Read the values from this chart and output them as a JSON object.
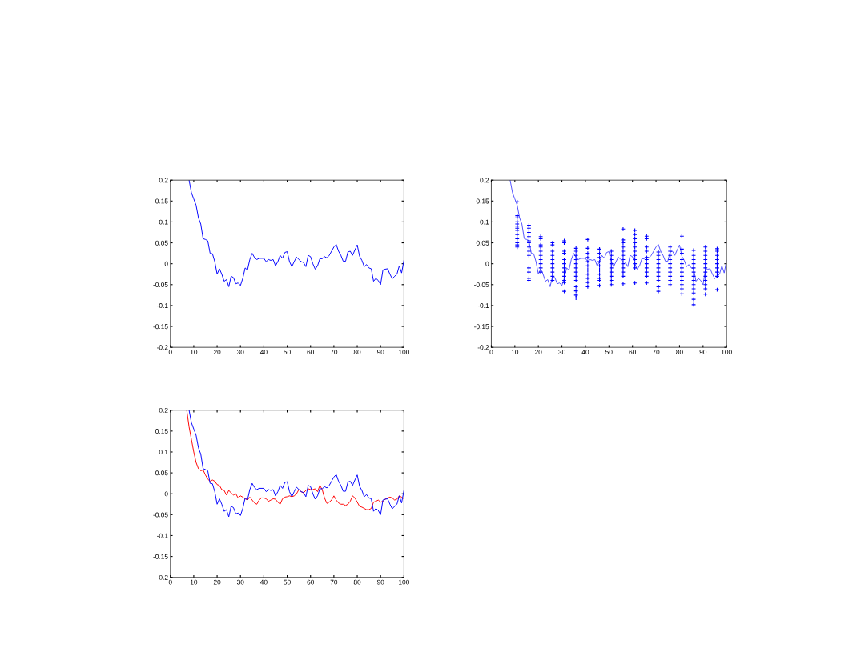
{
  "chart_data": [
    {
      "type": "line",
      "xlim": [
        0,
        100
      ],
      "ylim": [
        -0.2,
        0.2
      ],
      "xticks": [
        0,
        10,
        20,
        30,
        40,
        50,
        60,
        70,
        80,
        90,
        100
      ],
      "yticks": [
        -0.2,
        -0.15,
        -0.1,
        -0.05,
        0,
        0.05,
        0.1,
        0.15,
        0.2
      ],
      "grid": false,
      "series": [
        {
          "color": "#0000ff",
          "x": [
            8,
            9,
            10,
            11,
            12,
            13,
            14,
            15,
            16,
            17,
            18,
            19,
            20,
            21,
            22,
            23,
            24,
            25,
            26,
            27,
            28,
            29,
            30,
            31,
            32,
            33,
            34,
            35,
            36,
            37,
            38,
            40,
            41,
            42,
            43,
            44,
            45,
            46,
            47,
            48,
            49,
            50,
            51,
            52,
            53,
            54,
            55,
            56,
            57,
            58,
            59,
            60,
            61,
            62,
            63,
            64,
            65,
            66,
            67,
            68,
            69,
            70,
            71,
            72,
            73,
            74,
            75,
            76,
            77,
            78,
            79,
            80,
            81,
            82,
            83,
            84,
            85,
            86,
            87,
            88,
            89,
            90,
            91,
            92,
            93,
            94,
            95,
            96,
            97,
            98,
            99,
            100
          ],
          "values": [
            0.2,
            0.17,
            0.155,
            0.14,
            0.11,
            0.095,
            0.06,
            0.058,
            0.055,
            0.025,
            0.024,
            0.005,
            -0.025,
            -0.012,
            -0.025,
            -0.042,
            -0.038,
            -0.055,
            -0.03,
            -0.033,
            -0.048,
            -0.046,
            -0.052,
            -0.035,
            -0.01,
            -0.015,
            0.01,
            0.025,
            0.015,
            0.01,
            0.013,
            0.013,
            0.005,
            0.01,
            0.008,
            0.01,
            -0.005,
            0.005,
            0.02,
            0.013,
            0.027,
            0.029,
            0.005,
            -0.007,
            0.005,
            0.016,
            0.01,
            0.005,
            0.003,
            -0.007,
            0.02,
            0.017,
            0,
            -0.013,
            -0.005,
            0.012,
            0.012,
            0.017,
            0.014,
            0.02,
            0.03,
            0.04,
            0.046,
            0.03,
            0.02,
            0.006,
            0.006,
            0.028,
            0.03,
            0.02,
            0.033,
            0.045,
            0.018,
            0.008,
            -0.007,
            -0.002,
            -0.01,
            -0.012,
            -0.042,
            -0.035,
            -0.04,
            -0.05,
            -0.015,
            -0.013,
            -0.012,
            -0.025,
            -0.036,
            -0.03,
            -0.025,
            -0.005,
            -0.022,
            0.008
          ]
        }
      ]
    },
    {
      "type": "line",
      "xlim": [
        0,
        100
      ],
      "ylim": [
        -0.2,
        0.2
      ],
      "xticks": [
        0,
        10,
        20,
        30,
        40,
        50,
        60,
        70,
        80,
        90,
        100
      ],
      "yticks": [
        -0.2,
        -0.15,
        -0.1,
        -0.05,
        0,
        0.05,
        0.1,
        0.15,
        0.2
      ],
      "grid": false,
      "series": [
        {
          "type": "scatter",
          "marker": "cross",
          "color": "#0000ff",
          "x": [
            11,
            11,
            11,
            11,
            11,
            11,
            11,
            11,
            11,
            11,
            11,
            11,
            11,
            16,
            16,
            16,
            16,
            16,
            16,
            16,
            16,
            16,
            16,
            16,
            16,
            16,
            21,
            21,
            21,
            21,
            21,
            21,
            21,
            21,
            21,
            21,
            26,
            26,
            26,
            26,
            26,
            26,
            26,
            26,
            26,
            26,
            31,
            31,
            31,
            31,
            31,
            31,
            31,
            31,
            31,
            31,
            31,
            31,
            36,
            36,
            36,
            36,
            36,
            36,
            36,
            36,
            36,
            36,
            36,
            36,
            36,
            41,
            41,
            41,
            41,
            41,
            41,
            41,
            41,
            41,
            41,
            41,
            46,
            46,
            46,
            46,
            46,
            46,
            46,
            46,
            46,
            46,
            51,
            51,
            51,
            51,
            51,
            51,
            51,
            51,
            51,
            56,
            56,
            56,
            56,
            56,
            56,
            56,
            56,
            56,
            56,
            56,
            56,
            61,
            61,
            61,
            61,
            61,
            61,
            61,
            61,
            61,
            61,
            61,
            66,
            66,
            66,
            66,
            66,
            66,
            66,
            66,
            66,
            66,
            66,
            71,
            71,
            71,
            71,
            71,
            71,
            71,
            71,
            71,
            71,
            76,
            76,
            76,
            76,
            76,
            76,
            76,
            76,
            76,
            76,
            81,
            81,
            81,
            81,
            81,
            81,
            81,
            81,
            81,
            81,
            81,
            81,
            86,
            86,
            86,
            86,
            86,
            86,
            86,
            86,
            86,
            86,
            86,
            86,
            86,
            91,
            91,
            91,
            91,
            91,
            91,
            91,
            91,
            91,
            91,
            91,
            91,
            96,
            96,
            96,
            96,
            96,
            96,
            96,
            96,
            96
          ],
          "values": [
            0.148,
            0.115,
            0.11,
            0.1,
            0.095,
            0.09,
            0.085,
            0.08,
            0.07,
            0.06,
            0.05,
            0.045,
            0.04,
            0.092,
            0.085,
            0.075,
            0.065,
            0.055,
            0.05,
            0.04,
            0.03,
            0.02,
            -0.01,
            -0.02,
            -0.035,
            -0.04,
            0.065,
            0.06,
            0.045,
            0.04,
            0.03,
            0.02,
            0.01,
            0,
            -0.01,
            -0.02,
            0.05,
            0.045,
            0.03,
            0.02,
            0.01,
            0,
            -0.01,
            -0.02,
            -0.03,
            -0.04,
            0.055,
            0.05,
            0.03,
            0.025,
            0.01,
            0,
            -0.01,
            -0.02,
            -0.03,
            -0.04,
            -0.045,
            -0.066,
            0.037,
            0.03,
            0.02,
            0.01,
            0,
            -0.01,
            -0.02,
            -0.03,
            -0.04,
            -0.055,
            -0.065,
            -0.075,
            -0.082,
            0.058,
            0.037,
            0.025,
            0.015,
            0.005,
            -0.005,
            -0.015,
            -0.025,
            -0.035,
            -0.045,
            -0.055,
            0.035,
            0.025,
            0.015,
            0.005,
            -0.005,
            -0.015,
            -0.025,
            -0.035,
            -0.04,
            -0.052,
            0.03,
            0.02,
            0.01,
            0,
            -0.01,
            -0.02,
            -0.03,
            -0.04,
            -0.05,
            0.083,
            0.057,
            0.05,
            0.04,
            0.03,
            0.02,
            0.01,
            0,
            -0.01,
            -0.02,
            -0.03,
            -0.048,
            0.08,
            0.07,
            0.06,
            0.05,
            0.04,
            0.03,
            0.02,
            0.01,
            0,
            -0.01,
            -0.046,
            0.066,
            0.06,
            0.04,
            0.03,
            0.015,
            0.01,
            0,
            -0.01,
            -0.02,
            -0.03,
            -0.046,
            0.028,
            0.02,
            0.01,
            0,
            -0.01,
            -0.02,
            -0.03,
            -0.04,
            -0.055,
            -0.066,
            0.04,
            0.03,
            0.02,
            0.01,
            0,
            -0.01,
            -0.02,
            -0.03,
            -0.04,
            -0.05,
            0.066,
            0.035,
            0.025,
            0.01,
            0,
            -0.01,
            -0.02,
            -0.03,
            -0.04,
            -0.05,
            -0.06,
            -0.072,
            0.032,
            0.02,
            0.01,
            0,
            -0.01,
            -0.02,
            -0.03,
            -0.04,
            -0.05,
            -0.06,
            -0.07,
            -0.085,
            -0.098,
            0.04,
            0.03,
            0.02,
            0.01,
            0,
            -0.01,
            -0.02,
            -0.03,
            -0.04,
            -0.05,
            -0.06,
            -0.073,
            0.036,
            0.03,
            0.02,
            0.01,
            0,
            -0.01,
            -0.02,
            -0.03,
            -0.062
          ]
        },
        {
          "type": "line",
          "color": "#5050ff",
          "x": [
            8,
            9,
            10,
            11,
            12,
            13,
            14,
            15,
            16,
            17,
            18,
            19,
            20,
            21,
            22,
            23,
            24,
            25,
            26,
            27,
            28,
            29,
            30,
            31,
            32,
            33,
            34,
            35,
            36,
            37,
            38,
            40,
            41,
            42,
            43,
            44,
            45,
            46,
            47,
            48,
            49,
            50,
            51,
            52,
            53,
            54,
            55,
            56,
            57,
            58,
            59,
            60,
            61,
            62,
            63,
            64,
            65,
            66,
            67,
            68,
            69,
            70,
            71,
            72,
            73,
            74,
            75,
            76,
            77,
            78,
            79,
            80,
            81,
            82,
            83,
            84,
            85,
            86,
            87,
            88,
            89,
            90,
            91,
            92,
            93,
            94,
            95,
            96,
            97,
            98,
            99,
            100
          ],
          "values": [
            0.2,
            0.17,
            0.155,
            0.14,
            0.11,
            0.095,
            0.06,
            0.058,
            0.055,
            0.025,
            0.024,
            0.005,
            -0.025,
            -0.012,
            -0.025,
            -0.042,
            -0.038,
            -0.055,
            -0.03,
            -0.033,
            -0.048,
            -0.046,
            -0.052,
            -0.035,
            -0.01,
            -0.015,
            0.01,
            0.025,
            0.015,
            0.01,
            0.013,
            0.013,
            0.005,
            0.01,
            0.008,
            0.01,
            -0.005,
            0.005,
            0.02,
            0.013,
            0.027,
            0.029,
            0.005,
            -0.007,
            0.005,
            0.016,
            0.01,
            0.005,
            0.003,
            -0.007,
            0.02,
            0.017,
            0,
            -0.013,
            -0.005,
            0.012,
            0.012,
            0.017,
            0.014,
            0.02,
            0.03,
            0.04,
            0.046,
            0.03,
            0.02,
            0.006,
            0.006,
            0.028,
            0.03,
            0.02,
            0.033,
            0.045,
            0.018,
            0.008,
            -0.007,
            -0.002,
            -0.01,
            -0.012,
            -0.042,
            -0.035,
            -0.04,
            -0.05,
            -0.015,
            -0.013,
            -0.012,
            -0.025,
            -0.036,
            -0.03,
            -0.025,
            -0.005,
            -0.022,
            0.008
          ]
        }
      ]
    },
    {
      "type": "line",
      "xlim": [
        0,
        100
      ],
      "ylim": [
        -0.2,
        0.2
      ],
      "xticks": [
        0,
        10,
        20,
        30,
        40,
        50,
        60,
        70,
        80,
        90,
        100
      ],
      "yticks": [
        -0.2,
        -0.15,
        -0.1,
        -0.05,
        0,
        0.05,
        0.1,
        0.15,
        0.2
      ],
      "grid": false,
      "series": [
        {
          "color": "#ff0000",
          "x": [
            7,
            8,
            9,
            10,
            11,
            12,
            13,
            14,
            15,
            16,
            17,
            18,
            19,
            20,
            21,
            22,
            23,
            24,
            25,
            26,
            27,
            28,
            29,
            30,
            31,
            32,
            33,
            34,
            35,
            36,
            37,
            38,
            39,
            40,
            41,
            42,
            43,
            44,
            45,
            46,
            47,
            48,
            49,
            50,
            51,
            52,
            53,
            54,
            55,
            56,
            57,
            58,
            59,
            60,
            61,
            62,
            63,
            64,
            65,
            66,
            67,
            68,
            69,
            70,
            71,
            72,
            73,
            74,
            75,
            76,
            77,
            78,
            79,
            80,
            81,
            82,
            83,
            84,
            85,
            86,
            87,
            88,
            89,
            90,
            91,
            92,
            93,
            94,
            95,
            96,
            97,
            98,
            99,
            100
          ],
          "values": [
            0.2,
            0.16,
            0.13,
            0.1,
            0.075,
            0.06,
            0.055,
            0.057,
            0.045,
            0.035,
            0.03,
            0.033,
            0.03,
            0.022,
            0.02,
            0.01,
            0.008,
            -0.003,
            0.008,
            0.002,
            -0.003,
            0,
            -0.01,
            -0.005,
            -0.008,
            -0.012,
            -0.015,
            -0.008,
            -0.015,
            -0.022,
            -0.025,
            -0.015,
            -0.01,
            -0.01,
            -0.012,
            -0.018,
            -0.015,
            -0.012,
            -0.013,
            -0.02,
            -0.025,
            -0.012,
            -0.008,
            -0.007,
            -0.005,
            -0.007,
            -0.005,
            0,
            0.01,
            0.005,
            0.002,
            0.008,
            0.012,
            0.01,
            0.01,
            0.012,
            0.005,
            0.02,
            0.01,
            -0.01,
            -0.023,
            -0.02,
            -0.015,
            -0.005,
            -0.015,
            -0.022,
            -0.025,
            -0.025,
            -0.028,
            -0.025,
            -0.018,
            -0.005,
            -0.01,
            -0.02,
            -0.03,
            -0.032,
            -0.035,
            -0.038,
            -0.038,
            -0.035,
            -0.02,
            -0.018,
            -0.015,
            -0.02,
            -0.018,
            -0.013,
            -0.01,
            -0.008,
            -0.01,
            -0.015,
            -0.013,
            -0.005,
            -0.008,
            -0.012
          ]
        },
        {
          "color": "#0000ff",
          "x": [
            8,
            9,
            10,
            11,
            12,
            13,
            14,
            15,
            16,
            17,
            18,
            19,
            20,
            21,
            22,
            23,
            24,
            25,
            26,
            27,
            28,
            29,
            30,
            31,
            32,
            33,
            34,
            35,
            36,
            37,
            38,
            40,
            41,
            42,
            43,
            44,
            45,
            46,
            47,
            48,
            49,
            50,
            51,
            52,
            53,
            54,
            55,
            56,
            57,
            58,
            59,
            60,
            61,
            62,
            63,
            64,
            65,
            66,
            67,
            68,
            69,
            70,
            71,
            72,
            73,
            74,
            75,
            76,
            77,
            78,
            79,
            80,
            81,
            82,
            83,
            84,
            85,
            86,
            87,
            88,
            89,
            90,
            91,
            92,
            93,
            94,
            95,
            96,
            97,
            98,
            99,
            100
          ],
          "values": [
            0.2,
            0.17,
            0.155,
            0.14,
            0.11,
            0.095,
            0.06,
            0.058,
            0.055,
            0.025,
            0.024,
            0.005,
            -0.025,
            -0.012,
            -0.025,
            -0.042,
            -0.038,
            -0.055,
            -0.03,
            -0.033,
            -0.048,
            -0.046,
            -0.052,
            -0.035,
            -0.01,
            -0.015,
            0.01,
            0.025,
            0.015,
            0.01,
            0.013,
            0.013,
            0.005,
            0.01,
            0.008,
            0.01,
            -0.005,
            0.005,
            0.02,
            0.013,
            0.027,
            0.029,
            0.005,
            -0.007,
            0.005,
            0.016,
            0.01,
            0.005,
            0.003,
            -0.007,
            0.02,
            0.017,
            0,
            -0.013,
            -0.005,
            0.012,
            0.012,
            0.017,
            0.014,
            0.02,
            0.03,
            0.04,
            0.046,
            0.03,
            0.02,
            0.006,
            0.006,
            0.028,
            0.03,
            0.02,
            0.033,
            0.045,
            0.018,
            0.008,
            -0.007,
            -0.002,
            -0.01,
            -0.012,
            -0.042,
            -0.035,
            -0.04,
            -0.05,
            -0.015,
            -0.013,
            -0.012,
            -0.025,
            -0.036,
            -0.03,
            -0.025,
            -0.005,
            -0.022,
            0.008
          ]
        }
      ]
    }
  ]
}
